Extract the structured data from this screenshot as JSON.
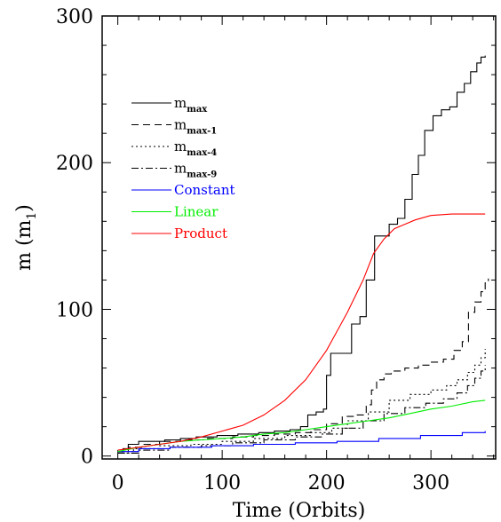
{
  "chart_data": {
    "type": "line",
    "title": "",
    "xlabel": "Time (Orbits)",
    "ylabel_main": "m (m",
    "ylabel_sub": "1",
    "ylabel_close": ")",
    "xlim": [
      -15,
      362
    ],
    "ylim": [
      -2,
      300
    ],
    "xticks": [
      0,
      100,
      200,
      300
    ],
    "yticks": [
      0,
      100,
      200,
      300
    ],
    "xtick_labels": [
      "0",
      "100",
      "200",
      "300"
    ],
    "ytick_labels": [
      "0",
      "100",
      "200",
      "300"
    ],
    "grid": false,
    "legend_position": "top-left",
    "series": [
      {
        "name": "m",
        "name_sub": "max",
        "color": "#000000",
        "dash": "solid",
        "step": true,
        "points": [
          [
            0,
            3
          ],
          [
            5,
            5
          ],
          [
            10,
            8
          ],
          [
            20,
            10
          ],
          [
            30,
            10
          ],
          [
            45,
            11
          ],
          [
            60,
            12
          ],
          [
            75,
            13
          ],
          [
            95,
            14
          ],
          [
            115,
            15
          ],
          [
            135,
            16
          ],
          [
            150,
            17
          ],
          [
            165,
            18
          ],
          [
            175,
            20
          ],
          [
            182,
            28
          ],
          [
            190,
            30
          ],
          [
            197,
            32
          ],
          [
            200,
            55
          ],
          [
            204,
            70
          ],
          [
            212,
            70
          ],
          [
            220,
            70
          ],
          [
            224,
            90
          ],
          [
            232,
            95
          ],
          [
            238,
            120
          ],
          [
            246,
            150
          ],
          [
            260,
            158
          ],
          [
            268,
            162
          ],
          [
            275,
            175
          ],
          [
            282,
            192
          ],
          [
            288,
            205
          ],
          [
            294,
            222
          ],
          [
            302,
            232
          ],
          [
            310,
            236
          ],
          [
            318,
            238
          ],
          [
            325,
            248
          ],
          [
            332,
            254
          ],
          [
            338,
            262
          ],
          [
            344,
            268
          ],
          [
            348,
            272
          ],
          [
            352,
            273
          ]
        ]
      },
      {
        "name": "m",
        "name_sub": "max-1",
        "color": "#000000",
        "dash": "8,5",
        "step": true,
        "points": [
          [
            0,
            2
          ],
          [
            10,
            6
          ],
          [
            25,
            8
          ],
          [
            40,
            10
          ],
          [
            60,
            11
          ],
          [
            85,
            12
          ],
          [
            110,
            13
          ],
          [
            130,
            14
          ],
          [
            150,
            15
          ],
          [
            170,
            16
          ],
          [
            185,
            18
          ],
          [
            200,
            22
          ],
          [
            215,
            27
          ],
          [
            228,
            28
          ],
          [
            238,
            35
          ],
          [
            243,
            45
          ],
          [
            248,
            52
          ],
          [
            255,
            56
          ],
          [
            262,
            58
          ],
          [
            275,
            60
          ],
          [
            288,
            62
          ],
          [
            300,
            64
          ],
          [
            312,
            66
          ],
          [
            322,
            72
          ],
          [
            330,
            78
          ],
          [
            336,
            98
          ],
          [
            342,
            105
          ],
          [
            348,
            112
          ],
          [
            352,
            118
          ],
          [
            355,
            121
          ]
        ]
      },
      {
        "name": "m",
        "name_sub": "max-4",
        "color": "#000000",
        "dash": "2,3",
        "step": true,
        "points": [
          [
            0,
            2
          ],
          [
            15,
            5
          ],
          [
            40,
            7
          ],
          [
            70,
            8
          ],
          [
            100,
            10
          ],
          [
            130,
            12
          ],
          [
            160,
            14
          ],
          [
            185,
            16
          ],
          [
            205,
            19
          ],
          [
            220,
            24
          ],
          [
            240,
            30
          ],
          [
            260,
            38
          ],
          [
            280,
            42
          ],
          [
            300,
            45
          ],
          [
            315,
            48
          ],
          [
            325,
            52
          ],
          [
            335,
            57
          ],
          [
            342,
            62
          ],
          [
            348,
            67
          ],
          [
            352,
            73
          ]
        ]
      },
      {
        "name": "m",
        "name_sub": "max-9",
        "color": "#000000",
        "dash": "8,3,2,3",
        "step": true,
        "points": [
          [
            0,
            2
          ],
          [
            20,
            4
          ],
          [
            50,
            6
          ],
          [
            80,
            7
          ],
          [
            110,
            9
          ],
          [
            140,
            11
          ],
          [
            170,
            13
          ],
          [
            195,
            15
          ],
          [
            215,
            19
          ],
          [
            235,
            24
          ],
          [
            255,
            29
          ],
          [
            275,
            33
          ],
          [
            295,
            36
          ],
          [
            312,
            39
          ],
          [
            325,
            43
          ],
          [
            335,
            48
          ],
          [
            342,
            53
          ],
          [
            348,
            58
          ],
          [
            352,
            62
          ]
        ]
      },
      {
        "name": "Constant",
        "color": "#0000ff",
        "dash": "solid",
        "step": true,
        "points": [
          [
            0,
            3
          ],
          [
            20,
            5
          ],
          [
            50,
            6
          ],
          [
            90,
            7
          ],
          [
            130,
            8
          ],
          [
            170,
            9
          ],
          [
            210,
            10
          ],
          [
            250,
            12
          ],
          [
            290,
            14
          ],
          [
            330,
            16
          ],
          [
            352,
            17
          ]
        ]
      },
      {
        "name": "Linear",
        "color": "#00ee00",
        "dash": "solid",
        "step": false,
        "points": [
          [
            0,
            3
          ],
          [
            20,
            6
          ],
          [
            40,
            8
          ],
          [
            60,
            10
          ],
          [
            80,
            11
          ],
          [
            100,
            12
          ],
          [
            120,
            13
          ],
          [
            140,
            15
          ],
          [
            160,
            16
          ],
          [
            180,
            18
          ],
          [
            200,
            20
          ],
          [
            220,
            22
          ],
          [
            240,
            24
          ],
          [
            260,
            26
          ],
          [
            280,
            29
          ],
          [
            300,
            32
          ],
          [
            320,
            34
          ],
          [
            340,
            37
          ],
          [
            352,
            38
          ]
        ]
      },
      {
        "name": "Product",
        "color": "#ff0000",
        "dash": "solid",
        "step": false,
        "points": [
          [
            0,
            4
          ],
          [
            20,
            6
          ],
          [
            40,
            8
          ],
          [
            60,
            10
          ],
          [
            80,
            13
          ],
          [
            100,
            17
          ],
          [
            120,
            21
          ],
          [
            140,
            28
          ],
          [
            160,
            38
          ],
          [
            180,
            52
          ],
          [
            200,
            72
          ],
          [
            220,
            98
          ],
          [
            235,
            120
          ],
          [
            245,
            138
          ],
          [
            255,
            148
          ],
          [
            265,
            155
          ],
          [
            275,
            158
          ],
          [
            285,
            161
          ],
          [
            300,
            164
          ],
          [
            320,
            165
          ],
          [
            352,
            165
          ]
        ]
      }
    ]
  }
}
